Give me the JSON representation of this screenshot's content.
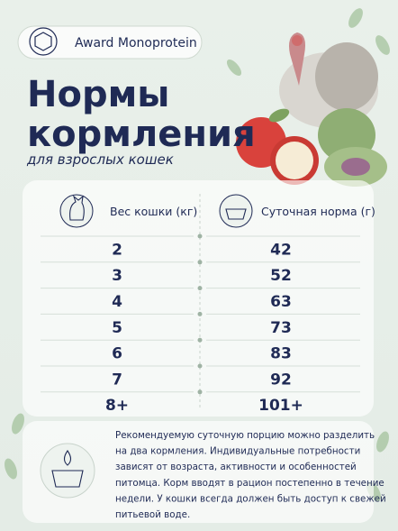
{
  "badge": {
    "text": "Award Monoprotein"
  },
  "header": {
    "title_lines": [
      "Нормы",
      "кормления"
    ],
    "subtitle": "для взрослых кошек"
  },
  "table": {
    "headers": [
      "Вес кошки (кг)",
      "Суточная норма (г)"
    ],
    "rows": [
      [
        "2",
        "42"
      ],
      [
        "3",
        "52"
      ],
      [
        "4",
        "63"
      ],
      [
        "5",
        "73"
      ],
      [
        "6",
        "83"
      ],
      [
        "7",
        "92"
      ],
      [
        "8+",
        "101+"
      ]
    ]
  },
  "note": {
    "lines": [
      "Рекомендуемую суточную порцию можно разделить",
      "на два кормления. Индивидуальные потребности",
      "зависят от возраста, активности и особенностей",
      "питомца. Корм вводят в рацион постепенно в течение",
      "недели. У кошки всегда должен быть доступ к свежей",
      "питьевой воде."
    ]
  }
}
